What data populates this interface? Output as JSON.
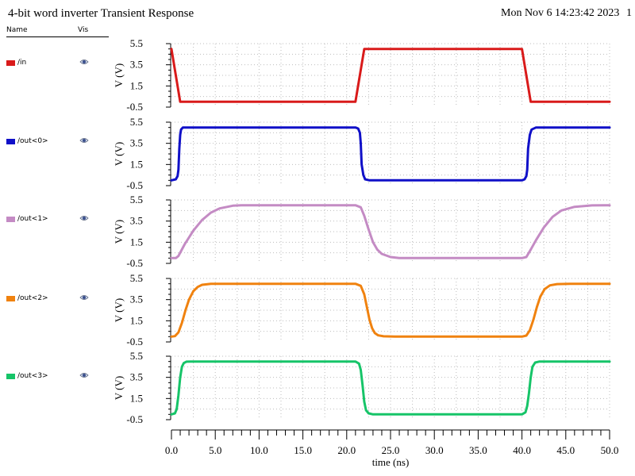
{
  "header": {
    "title": "4-bit word inverter Transient Response",
    "date": "Mon Nov 6 14:23:42 2023",
    "page": "1"
  },
  "legend": {
    "name_header": "Name",
    "vis_header": "Vis"
  },
  "chart_data": {
    "type": "line",
    "title": "4-bit word inverter Transient Response",
    "xlabel": "time (ns)",
    "ylabel": "V (V)",
    "xlim": [
      0,
      50
    ],
    "ylim": [
      -0.5,
      5.5
    ],
    "x_ticks": [
      "0.0",
      "5.0",
      "10.0",
      "15.0",
      "20.0",
      "25.0",
      "30.0",
      "35.0",
      "40.0",
      "45.0",
      "50.0"
    ],
    "y_ticks": [
      "5.5",
      "3.5",
      "1.5",
      "-0.5"
    ],
    "grid": true,
    "series": [
      {
        "name": "/in",
        "color": "#d91a1a",
        "x": [
          0,
          1.0,
          21.0,
          22.0,
          40.0,
          41.0,
          50
        ],
        "y": [
          5.0,
          0.0,
          0.0,
          5.0,
          5.0,
          0.0,
          0.0
        ]
      },
      {
        "name": "/out<0>",
        "color": "#1010c8",
        "x": [
          0,
          0.5,
          0.7,
          0.8,
          0.9,
          1.0,
          1.1,
          1.3,
          21.0,
          21.3,
          21.5,
          21.6,
          21.7,
          21.9,
          22.1,
          22.6,
          40.0,
          40.3,
          40.5,
          40.6,
          40.7,
          40.9,
          41.1,
          41.6,
          50
        ],
        "y": [
          0.0,
          0.1,
          0.4,
          1.0,
          3.0,
          4.3,
          4.8,
          5.0,
          5.0,
          4.9,
          4.5,
          3.5,
          1.5,
          0.5,
          0.1,
          0.0,
          0.0,
          0.1,
          0.4,
          1.0,
          3.0,
          4.3,
          4.8,
          5.0,
          5.0
        ]
      },
      {
        "name": "/out<1>",
        "color": "#c48bc4",
        "x": [
          0,
          0.5,
          0.8,
          1.5,
          2.5,
          3.5,
          4.5,
          5.5,
          7.0,
          8.0,
          10.0,
          21.0,
          21.6,
          22.0,
          22.5,
          23.0,
          23.5,
          24.0,
          25.0,
          26.0,
          28.0,
          40.0,
          40.5,
          41.0,
          41.6,
          42.5,
          43.5,
          44.5,
          46.0,
          48.0,
          50
        ],
        "y": [
          0.0,
          0.0,
          0.2,
          1.3,
          2.6,
          3.6,
          4.3,
          4.7,
          4.95,
          5.0,
          5.0,
          5.0,
          4.8,
          4.0,
          2.7,
          1.5,
          0.8,
          0.4,
          0.1,
          0.0,
          0.0,
          0.0,
          0.1,
          0.8,
          1.7,
          2.9,
          3.9,
          4.5,
          4.85,
          4.98,
          5.0
        ]
      },
      {
        "name": "/out<2>",
        "color": "#f0820f",
        "x": [
          0,
          0.4,
          0.8,
          1.2,
          1.6,
          2.0,
          2.5,
          3.0,
          3.5,
          4.5,
          6.0,
          21.0,
          21.6,
          22.0,
          22.3,
          22.6,
          22.9,
          23.2,
          23.6,
          24.2,
          25.5,
          40.0,
          40.5,
          40.9,
          41.3,
          41.7,
          42.1,
          42.6,
          43.2,
          44.0,
          45.5,
          50
        ],
        "y": [
          0.0,
          0.05,
          0.4,
          1.3,
          2.5,
          3.5,
          4.3,
          4.7,
          4.9,
          5.0,
          5.0,
          5.0,
          4.8,
          4.0,
          2.8,
          1.6,
          0.8,
          0.35,
          0.12,
          0.03,
          0.0,
          0.0,
          0.1,
          0.6,
          1.6,
          2.8,
          3.8,
          4.5,
          4.85,
          4.97,
          5.0,
          5.0
        ]
      },
      {
        "name": "/out<3>",
        "color": "#16c468",
        "x": [
          0,
          0.4,
          0.6,
          0.8,
          1.0,
          1.2,
          1.4,
          1.7,
          2.2,
          21.0,
          21.4,
          21.6,
          21.8,
          22.0,
          22.2,
          22.5,
          23.0,
          40.0,
          40.4,
          40.6,
          40.8,
          41.0,
          41.2,
          41.5,
          42.0,
          50
        ],
        "y": [
          0.0,
          0.1,
          0.5,
          1.8,
          3.5,
          4.5,
          4.85,
          4.98,
          5.0,
          5.0,
          4.8,
          4.2,
          2.8,
          1.2,
          0.4,
          0.1,
          0.0,
          0.0,
          0.2,
          0.8,
          2.0,
          3.5,
          4.5,
          4.9,
          5.0,
          5.0
        ]
      }
    ]
  }
}
